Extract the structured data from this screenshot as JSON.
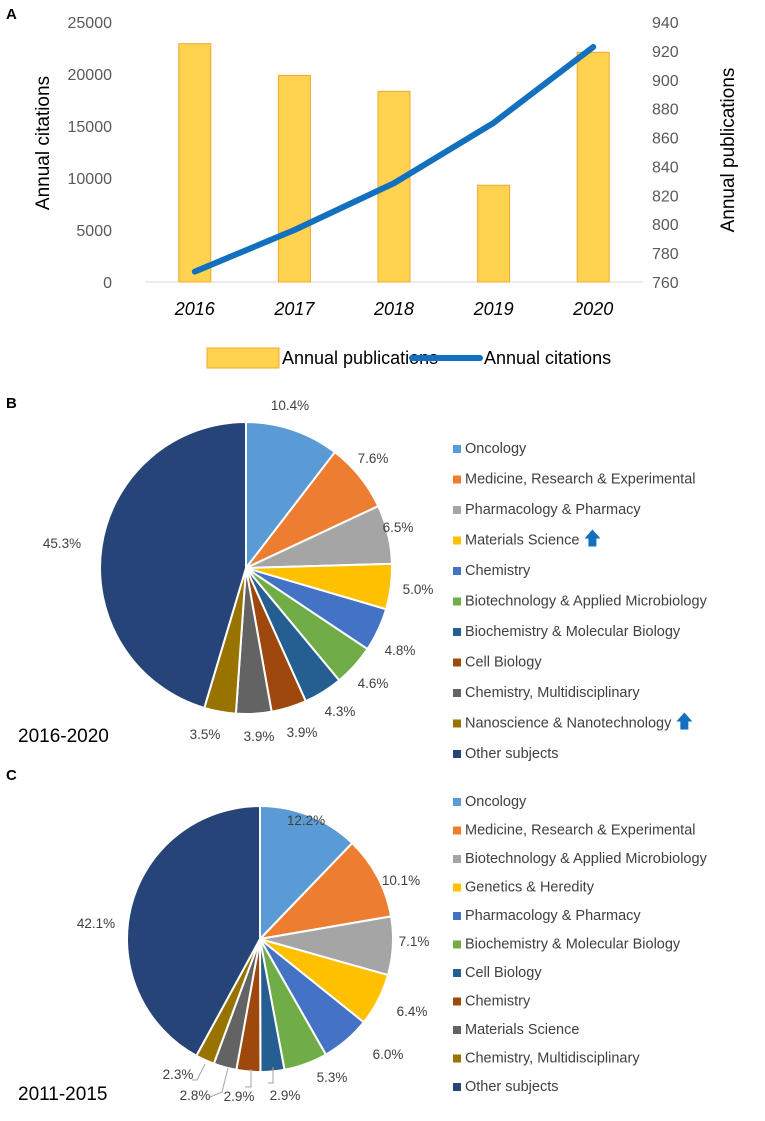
{
  "panel_letters": [
    "A",
    "B",
    "C"
  ],
  "chart_data": [
    {
      "type": "bar",
      "panel": "A",
      "categories": [
        "2016",
        "2017",
        "2018",
        "2019",
        "2020"
      ],
      "series": [
        {
          "name": "Annual publications",
          "kind": "bar",
          "axis": "right",
          "values": [
            925,
            903,
            892,
            827,
            919
          ],
          "color": "#FFD34F"
        },
        {
          "name": "Annual citations",
          "kind": "line",
          "axis": "left",
          "values": [
            1000,
            5000,
            9500,
            15300,
            22600
          ],
          "color": "#1270BF"
        }
      ],
      "ylabel_left": "Annual citations",
      "ylabel_right": "Annual publications",
      "ylim_left": [
        0,
        25000
      ],
      "yticks_left": [
        "0",
        "5000",
        "10000",
        "15000",
        "20000",
        "25000"
      ],
      "ylim_right": [
        760,
        940
      ],
      "yticks_right": [
        "760",
        "780",
        "800",
        "820",
        "840",
        "860",
        "880",
        "900",
        "920",
        "940"
      ],
      "legend": [
        "Annual publications",
        "Annual citations"
      ]
    },
    {
      "type": "pie",
      "panel": "B",
      "period": "2016-2020",
      "categories": [
        "Oncology",
        "Medicine, Research & Experimental",
        "Pharmacology & Pharmacy",
        "Materials Science",
        "Chemistry",
        "Biotechnology & Applied Microbiology",
        "Biochemistry & Molecular Biology",
        "Cell Biology",
        "Chemistry, Multidisciplinary",
        "Nanoscience & Nanotechnology",
        "Other subjects"
      ],
      "values": [
        10.4,
        7.6,
        6.5,
        5.0,
        4.8,
        4.6,
        4.3,
        3.9,
        3.9,
        3.5,
        45.3
      ],
      "labels": [
        "10.4%",
        "7.6%",
        "6.5%",
        "5.0%",
        "4.8%",
        "4.6%",
        "4.3%",
        "3.9%",
        "3.9%",
        "3.5%",
        "45.3%"
      ],
      "colors": [
        "#5B9BD5",
        "#ED7D31",
        "#A5A5A5",
        "#FFC000",
        "#4472C4",
        "#70AD47",
        "#255E91",
        "#9E480E",
        "#636363",
        "#997300",
        "#264478"
      ],
      "rising": [
        "Materials Science",
        "Nanoscience & Nanotechnology"
      ]
    },
    {
      "type": "pie",
      "panel": "C",
      "period": "2011-2015",
      "categories": [
        "Oncology",
        "Medicine, Research & Experimental",
        "Biotechnology & Applied Microbiology",
        "Genetics & Heredity",
        "Pharmacology & Pharmacy",
        "Biochemistry & Molecular Biology",
        "Cell Biology",
        "Chemistry",
        "Materials Science",
        "Chemistry, Multidisciplinary",
        "Other subjects"
      ],
      "values": [
        12.2,
        10.1,
        7.1,
        6.4,
        6.0,
        5.3,
        2.9,
        2.9,
        2.8,
        2.3,
        42.1
      ],
      "labels": [
        "12.2%",
        "10.1%",
        "7.1%",
        "6.4%",
        "6.0%",
        "5.3%",
        "2.9%",
        "2.9%",
        "2.8%",
        "2.3%",
        "42.1%"
      ],
      "colors": [
        "#5B9BD5",
        "#ED7D31",
        "#A5A5A5",
        "#FFC000",
        "#4472C4",
        "#70AD47",
        "#255E91",
        "#9E480E",
        "#636363",
        "#997300",
        "#264478"
      ],
      "rising": []
    }
  ]
}
